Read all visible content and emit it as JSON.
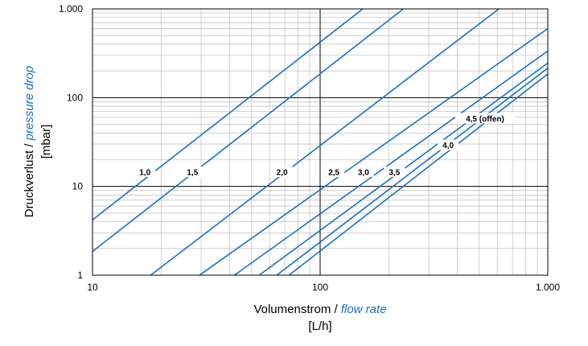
{
  "chart_data": {
    "type": "line",
    "x_scale": "log",
    "y_scale": "log",
    "xlim": [
      10,
      1000
    ],
    "ylim": [
      1,
      1000
    ],
    "x_ticks": [
      {
        "value": 10,
        "label": "10"
      },
      {
        "value": 100,
        "label": "100"
      },
      {
        "value": 1000,
        "label": "1.000"
      }
    ],
    "y_ticks": [
      {
        "value": 1,
        "label": "1"
      },
      {
        "value": 10,
        "label": "10"
      },
      {
        "value": 100,
        "label": "100"
      },
      {
        "value": 1000,
        "label": "1.000"
      }
    ],
    "xlabel": {
      "main": "Volumenstrom / ",
      "accent": "flow rate",
      "unit": "[L/h]"
    },
    "ylabel": {
      "main": "Druckverlust / ",
      "accent": "pressure drop",
      "unit": "[mbar]"
    },
    "grid": "major and minor",
    "line_color": "#1f6fb8",
    "accent_color": "#1f6fb8",
    "series": [
      {
        "name": "1,0",
        "points": [
          [
            10,
            4.2
          ],
          [
            154,
            1000
          ]
        ],
        "label_at": [
          17,
          14.5
        ]
      },
      {
        "name": "1,5",
        "points": [
          [
            10,
            1.85
          ],
          [
            232,
            1000
          ]
        ],
        "label_at": [
          27.5,
          14.5
        ]
      },
      {
        "name": "2,0",
        "points": [
          [
            18,
            1
          ],
          [
            610,
            1000
          ]
        ],
        "label_at": [
          68,
          14.5
        ]
      },
      {
        "name": "2,5",
        "points": [
          [
            29.5,
            1
          ],
          [
            1000,
            600
          ]
        ],
        "label_at": [
          115,
          14.5
        ]
      },
      {
        "name": "3,0",
        "points": [
          [
            42,
            1
          ],
          [
            1000,
            335
          ]
        ],
        "label_at": [
          155,
          14.5
        ]
      },
      {
        "name": "3,5",
        "points": [
          [
            54,
            1
          ],
          [
            1000,
            245
          ]
        ],
        "label_at": [
          212,
          14.5
        ]
      },
      {
        "name": "4,0",
        "points": [
          [
            64.5,
            1
          ],
          [
            1000,
            215
          ]
        ],
        "label_at": [
          365,
          29
        ]
      },
      {
        "name": "4,5 (offen)",
        "points": [
          [
            73,
            1
          ],
          [
            1000,
            185
          ]
        ],
        "label_at": [
          530,
          58
        ]
      }
    ]
  }
}
